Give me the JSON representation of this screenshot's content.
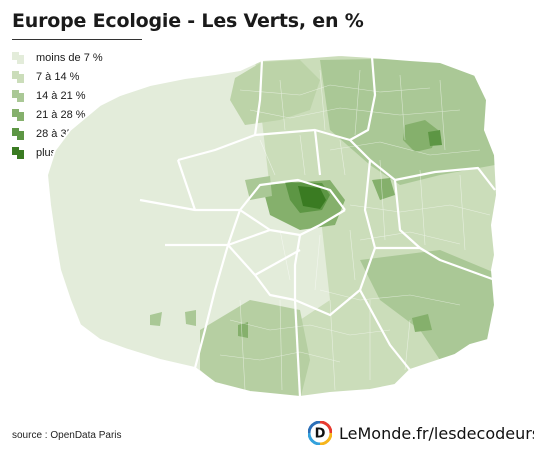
{
  "title": "Europe Ecologie - Les Verts, en %",
  "legend": [
    {
      "label": "moins de 7 %",
      "color": "#e3ecda"
    },
    {
      "label": "7 à 14 %",
      "color": "#cbddba"
    },
    {
      "label": "14 à 21 %",
      "color": "#aac896"
    },
    {
      "label": "21 à 28 %",
      "color": "#85b06c"
    },
    {
      "label": "28 à 35 %",
      "color": "#5d9644"
    },
    {
      "label": "plus de 35 %",
      "color": "#3a7b22"
    }
  ],
  "source": "source : OpenData Paris",
  "brand": {
    "text": "LeMonde.fr/lesdecodeurs",
    "logo_letter": "D",
    "logo_ring_colors": [
      "#e63a2f",
      "#f6b51c",
      "#33a1dc",
      "#2c6fb7"
    ]
  }
}
